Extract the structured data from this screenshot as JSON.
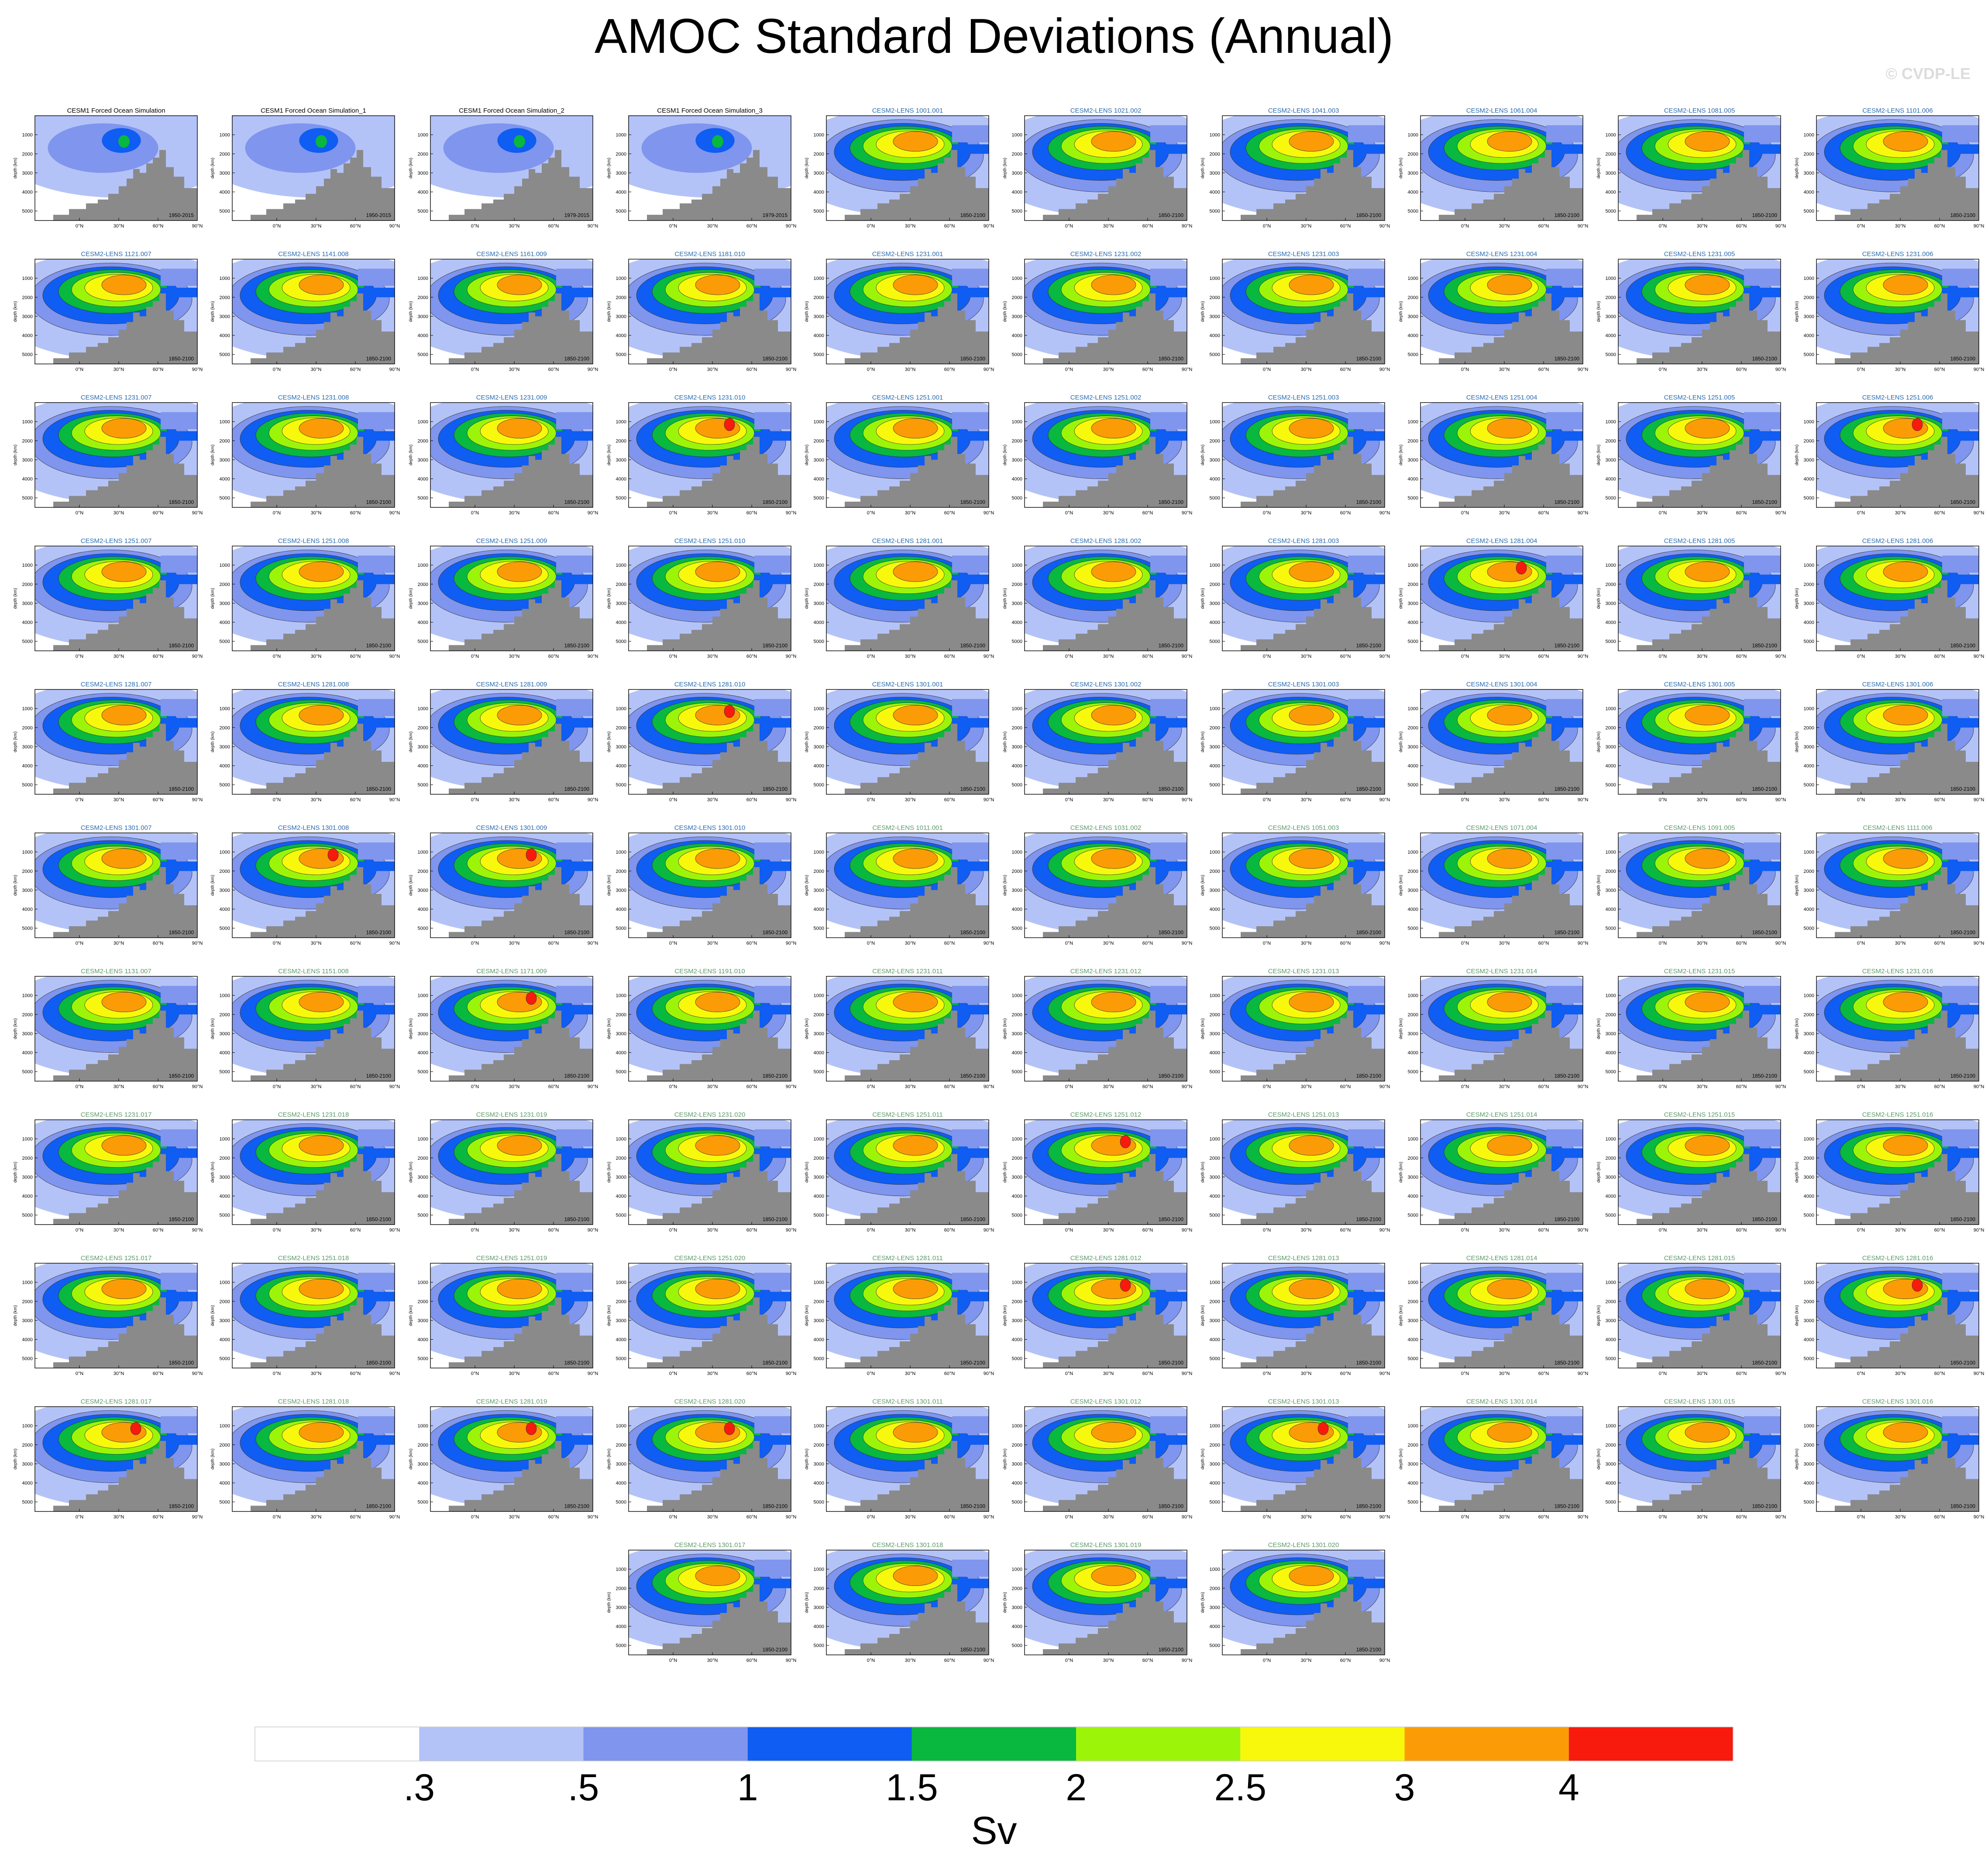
{
  "title": "AMOC Standard Deviations (Annual)",
  "watermark": "© CVDP-LE",
  "chart_data": {
    "type": "contour-panels",
    "title": "AMOC Standard Deviations (Annual)",
    "units": "Sv",
    "ylabel": "depth (km)",
    "x_ticks": [
      "0°N",
      "30°N",
      "60°N",
      "90°N"
    ],
    "y_ticks": [
      "1000",
      "2000",
      "3000",
      "4000",
      "5000"
    ],
    "ylim": [
      0,
      5500
    ],
    "xlim": [
      -34,
      90
    ],
    "contour_levels": [
      ".3",
      ".5",
      "1",
      "1.5",
      "2",
      "2.5",
      "3",
      "4"
    ],
    "colors": [
      "#ffffff",
      "#b4c3f7",
      "#7f95ee",
      "#0f5df2",
      "#08b83f",
      "#9cf508",
      "#f7f80b",
      "#fb9c06",
      "#f71a0d"
    ],
    "colorbar_label": "Sv",
    "panels": [
      {
        "title": "CESM1 Forced Ocean Simulation",
        "years": "1950-2015",
        "peak": 1.6,
        "title_color": "#000000"
      },
      {
        "title": "CESM1 Forced Ocean Simulation_1",
        "years": "1950-2015",
        "peak": 1.6,
        "title_color": "#000000"
      },
      {
        "title": "CESM1 Forced Ocean Simulation_2",
        "years": "1979-2015",
        "peak": 1.6,
        "title_color": "#000000"
      },
      {
        "title": "CESM1 Forced Ocean Simulation_3",
        "years": "1979-2015",
        "peak": 1.7,
        "title_color": "#000000"
      },
      {
        "title": "CESM2-LENS 1001.001",
        "years": "1850-2100",
        "peak": 3.4,
        "title_color": "#2a6bb0"
      },
      {
        "title": "CESM2-LENS 1021.002",
        "years": "1850-2100",
        "peak": 3.1,
        "title_color": "#2a6bb0"
      },
      {
        "title": "CESM2-LENS 1041.003",
        "years": "1850-2100",
        "peak": 3.1,
        "title_color": "#2a6bb0"
      },
      {
        "title": "CESM2-LENS 1061.004",
        "years": "1850-2100",
        "peak": 3.1,
        "title_color": "#2a6bb0"
      },
      {
        "title": "CESM2-LENS 1081.005",
        "years": "1850-2100",
        "peak": 3.3,
        "title_color": "#2a6bb0"
      },
      {
        "title": "CESM2-LENS 1101.006",
        "years": "1850-2100",
        "peak": 3.2,
        "title_color": "#2a6bb0"
      },
      {
        "title": "CESM2-LENS 1121.007",
        "years": "1850-2100",
        "peak": 3.3,
        "title_color": "#2a6bb0"
      },
      {
        "title": "CESM2-LENS 1141.008",
        "years": "1850-2100",
        "peak": 3.1,
        "title_color": "#2a6bb0"
      },
      {
        "title": "CESM2-LENS 1161.009",
        "years": "1850-2100",
        "peak": 3.4,
        "title_color": "#2a6bb0"
      },
      {
        "title": "CESM2-LENS 1181.010",
        "years": "1850-2100",
        "peak": 3.1,
        "title_color": "#2a6bb0"
      },
      {
        "title": "CESM2-LENS 1231.001",
        "years": "1850-2100",
        "peak": 3.1,
        "title_color": "#2a6bb0"
      },
      {
        "title": "CESM2-LENS 1231.002",
        "years": "1850-2100",
        "peak": 3.1,
        "title_color": "#2a6bb0"
      },
      {
        "title": "CESM2-LENS 1231.003",
        "years": "1850-2100",
        "peak": 3.1,
        "title_color": "#2a6bb0"
      },
      {
        "title": "CESM2-LENS 1231.004",
        "years": "1850-2100",
        "peak": 3.1,
        "title_color": "#2a6bb0"
      },
      {
        "title": "CESM2-LENS 1231.005",
        "years": "1850-2100",
        "peak": 3.1,
        "title_color": "#2a6bb0"
      },
      {
        "title": "CESM2-LENS 1231.006",
        "years": "1850-2100",
        "peak": 3.1,
        "title_color": "#2a6bb0"
      },
      {
        "title": "CESM2-LENS 1231.007",
        "years": "1850-2100",
        "peak": 3.1,
        "title_color": "#2a6bb0"
      },
      {
        "title": "CESM2-LENS 1231.008",
        "years": "1850-2100",
        "peak": 3.1,
        "title_color": "#2a6bb0"
      },
      {
        "title": "CESM2-LENS 1231.009",
        "years": "1850-2100",
        "peak": 3.1,
        "title_color": "#2a6bb0"
      },
      {
        "title": "CESM2-LENS 1231.010",
        "years": "1850-2100",
        "peak": 4.2,
        "title_color": "#2a6bb0"
      },
      {
        "title": "CESM2-LENS 1251.001",
        "years": "1850-2100",
        "peak": 3.1,
        "title_color": "#2a6bb0"
      },
      {
        "title": "CESM2-LENS 1251.002",
        "years": "1850-2100",
        "peak": 3.1,
        "title_color": "#2a6bb0"
      },
      {
        "title": "CESM2-LENS 1251.003",
        "years": "1850-2100",
        "peak": 3.1,
        "title_color": "#2a6bb0"
      },
      {
        "title": "CESM2-LENS 1251.004",
        "years": "1850-2100",
        "peak": 3.4,
        "title_color": "#2a6bb0"
      },
      {
        "title": "CESM2-LENS 1251.005",
        "years": "1850-2100",
        "peak": 3.1,
        "title_color": "#2a6bb0"
      },
      {
        "title": "CESM2-LENS 1251.006",
        "years": "1850-2100",
        "peak": 4.1,
        "title_color": "#2a6bb0"
      },
      {
        "title": "CESM2-LENS 1251.007",
        "years": "1850-2100",
        "peak": 3.1,
        "title_color": "#2a6bb0"
      },
      {
        "title": "CESM2-LENS 1251.008",
        "years": "1850-2100",
        "peak": 3.1,
        "title_color": "#2a6bb0"
      },
      {
        "title": "CESM2-LENS 1251.009",
        "years": "1850-2100",
        "peak": 3.1,
        "title_color": "#2a6bb0"
      },
      {
        "title": "CESM2-LENS 1251.010",
        "years": "1850-2100",
        "peak": 3.1,
        "title_color": "#2a6bb0"
      },
      {
        "title": "CESM2-LENS 1281.001",
        "years": "1850-2100",
        "peak": 3.1,
        "title_color": "#2a6bb0"
      },
      {
        "title": "CESM2-LENS 1281.002",
        "years": "1850-2100",
        "peak": 3.5,
        "title_color": "#2a6bb0"
      },
      {
        "title": "CESM2-LENS 1281.003",
        "years": "1850-2100",
        "peak": 3.1,
        "title_color": "#2a6bb0"
      },
      {
        "title": "CESM2-LENS 1281.004",
        "years": "1850-2100",
        "peak": 4.1,
        "title_color": "#2a6bb0"
      },
      {
        "title": "CESM2-LENS 1281.005",
        "years": "1850-2100",
        "peak": 3.1,
        "title_color": "#2a6bb0"
      },
      {
        "title": "CESM2-LENS 1281.006",
        "years": "1850-2100",
        "peak": 3.1,
        "title_color": "#2a6bb0"
      },
      {
        "title": "CESM2-LENS 1281.007",
        "years": "1850-2100",
        "peak": 3.1,
        "title_color": "#2a6bb0"
      },
      {
        "title": "CESM2-LENS 1281.008",
        "years": "1850-2100",
        "peak": 3.4,
        "title_color": "#2a6bb0"
      },
      {
        "title": "CESM2-LENS 1281.009",
        "years": "1850-2100",
        "peak": 3.1,
        "title_color": "#2a6bb0"
      },
      {
        "title": "CESM2-LENS 1281.010",
        "years": "1850-2100",
        "peak": 4.1,
        "title_color": "#2a6bb0"
      },
      {
        "title": "CESM2-LENS 1301.001",
        "years": "1850-2100",
        "peak": 3.1,
        "title_color": "#2a6bb0"
      },
      {
        "title": "CESM2-LENS 1301.002",
        "years": "1850-2100",
        "peak": 3.1,
        "title_color": "#2a6bb0"
      },
      {
        "title": "CESM2-LENS 1301.003",
        "years": "1850-2100",
        "peak": 3.1,
        "title_color": "#2a6bb0"
      },
      {
        "title": "CESM2-LENS 1301.004",
        "years": "1850-2100",
        "peak": 3.1,
        "title_color": "#2a6bb0"
      },
      {
        "title": "CESM2-LENS 1301.005",
        "years": "1850-2100",
        "peak": 3.1,
        "title_color": "#2a6bb0"
      },
      {
        "title": "CESM2-LENS 1301.006",
        "years": "1850-2100",
        "peak": 3.4,
        "title_color": "#2a6bb0"
      },
      {
        "title": "CESM2-LENS 1301.007",
        "years": "1850-2100",
        "peak": 3.1,
        "title_color": "#2a6bb0"
      },
      {
        "title": "CESM2-LENS 1301.008",
        "years": "1850-2100",
        "peak": 4.1,
        "title_color": "#2a6bb0"
      },
      {
        "title": "CESM2-LENS 1301.009",
        "years": "1850-2100",
        "peak": 4.1,
        "title_color": "#2a6bb0"
      },
      {
        "title": "CESM2-LENS 1301.010",
        "years": "1850-2100",
        "peak": 3.1,
        "title_color": "#2a6bb0"
      },
      {
        "title": "CESM2-LENS 1011.001",
        "years": "1850-2100",
        "peak": 3.1,
        "title_color": "#5c9a6a"
      },
      {
        "title": "CESM2-LENS 1031.002",
        "years": "1850-2100",
        "peak": 3.1,
        "title_color": "#5c9a6a"
      },
      {
        "title": "CESM2-LENS 1051.003",
        "years": "1850-2100",
        "peak": 3.1,
        "title_color": "#5c9a6a"
      },
      {
        "title": "CESM2-LENS 1071.004",
        "years": "1850-2100",
        "peak": 3.1,
        "title_color": "#5c9a6a"
      },
      {
        "title": "CESM2-LENS 1091.005",
        "years": "1850-2100",
        "peak": 3.3,
        "title_color": "#5c9a6a"
      },
      {
        "title": "CESM2-LENS 1111.006",
        "years": "1850-2100",
        "peak": 3.1,
        "title_color": "#5c9a6a"
      },
      {
        "title": "CESM2-LENS 1131.007",
        "years": "1850-2100",
        "peak": 3.3,
        "title_color": "#5c9a6a"
      },
      {
        "title": "CESM2-LENS 1151.008",
        "years": "1850-2100",
        "peak": 3.1,
        "title_color": "#5c9a6a"
      },
      {
        "title": "CESM2-LENS 1171.009",
        "years": "1850-2100",
        "peak": 4.1,
        "title_color": "#5c9a6a"
      },
      {
        "title": "CESM2-LENS 1191.010",
        "years": "1850-2100",
        "peak": 3.1,
        "title_color": "#5c9a6a"
      },
      {
        "title": "CESM2-LENS 1231.011",
        "years": "1850-2100",
        "peak": 3.1,
        "title_color": "#5c9a6a"
      },
      {
        "title": "CESM2-LENS 1231.012",
        "years": "1850-2100",
        "peak": 3.1,
        "title_color": "#5c9a6a"
      },
      {
        "title": "CESM2-LENS 1231.013",
        "years": "1850-2100",
        "peak": 3.1,
        "title_color": "#5c9a6a"
      },
      {
        "title": "CESM2-LENS 1231.014",
        "years": "1850-2100",
        "peak": 3.1,
        "title_color": "#5c9a6a"
      },
      {
        "title": "CESM2-LENS 1231.015",
        "years": "1850-2100",
        "peak": 3.1,
        "title_color": "#5c9a6a"
      },
      {
        "title": "CESM2-LENS 1231.016",
        "years": "1850-2100",
        "peak": 3.1,
        "title_color": "#5c9a6a"
      },
      {
        "title": "CESM2-LENS 1231.017",
        "years": "1850-2100",
        "peak": 3.3,
        "title_color": "#5c9a6a"
      },
      {
        "title": "CESM2-LENS 1231.018",
        "years": "1850-2100",
        "peak": 3.1,
        "title_color": "#5c9a6a"
      },
      {
        "title": "CESM2-LENS 1231.019",
        "years": "1850-2100",
        "peak": 3.1,
        "title_color": "#5c9a6a"
      },
      {
        "title": "CESM2-LENS 1231.020",
        "years": "1850-2100",
        "peak": 3.1,
        "title_color": "#5c9a6a"
      },
      {
        "title": "CESM2-LENS 1251.011",
        "years": "1850-2100",
        "peak": 3.1,
        "title_color": "#5c9a6a"
      },
      {
        "title": "CESM2-LENS 1251.012",
        "years": "1850-2100",
        "peak": 4.1,
        "title_color": "#5c9a6a"
      },
      {
        "title": "CESM2-LENS 1251.013",
        "years": "1850-2100",
        "peak": 3.1,
        "title_color": "#5c9a6a"
      },
      {
        "title": "CESM2-LENS 1251.014",
        "years": "1850-2100",
        "peak": 3.1,
        "title_color": "#5c9a6a"
      },
      {
        "title": "CESM2-LENS 1251.015",
        "years": "1850-2100",
        "peak": 3.1,
        "title_color": "#5c9a6a"
      },
      {
        "title": "CESM2-LENS 1251.016",
        "years": "1850-2100",
        "peak": 3.1,
        "title_color": "#5c9a6a"
      },
      {
        "title": "CESM2-LENS 1251.017",
        "years": "1850-2100",
        "peak": 3.1,
        "title_color": "#5c9a6a"
      },
      {
        "title": "CESM2-LENS 1251.018",
        "years": "1850-2100",
        "peak": 3.0,
        "title_color": "#5c9a6a"
      },
      {
        "title": "CESM2-LENS 1251.019",
        "years": "1850-2100",
        "peak": 3.1,
        "title_color": "#5c9a6a"
      },
      {
        "title": "CESM2-LENS 1251.020",
        "years": "1850-2100",
        "peak": 3.1,
        "title_color": "#5c9a6a"
      },
      {
        "title": "CESM2-LENS 1281.011",
        "years": "1850-2100",
        "peak": 3.3,
        "title_color": "#5c9a6a"
      },
      {
        "title": "CESM2-LENS 1281.012",
        "years": "1850-2100",
        "peak": 4.1,
        "title_color": "#5c9a6a"
      },
      {
        "title": "CESM2-LENS 1281.013",
        "years": "1850-2100",
        "peak": 3.3,
        "title_color": "#5c9a6a"
      },
      {
        "title": "CESM2-LENS 1281.014",
        "years": "1850-2100",
        "peak": 3.1,
        "title_color": "#5c9a6a"
      },
      {
        "title": "CESM2-LENS 1281.015",
        "years": "1850-2100",
        "peak": 3.3,
        "title_color": "#5c9a6a"
      },
      {
        "title": "CESM2-LENS 1281.016",
        "years": "1850-2100",
        "peak": 4.1,
        "title_color": "#5c9a6a"
      },
      {
        "title": "CESM2-LENS 1281.017",
        "years": "1850-2100",
        "peak": 4.1,
        "title_color": "#5c9a6a"
      },
      {
        "title": "CESM2-LENS 1281.018",
        "years": "1850-2100",
        "peak": 3.1,
        "title_color": "#5c9a6a"
      },
      {
        "title": "CESM2-LENS 1281.019",
        "years": "1850-2100",
        "peak": 4.1,
        "title_color": "#5c9a6a"
      },
      {
        "title": "CESM2-LENS 1281.020",
        "years": "1850-2100",
        "peak": 4.2,
        "title_color": "#5c9a6a"
      },
      {
        "title": "CESM2-LENS 1301.011",
        "years": "1850-2100",
        "peak": 3.1,
        "title_color": "#5c9a6a"
      },
      {
        "title": "CESM2-LENS 1301.012",
        "years": "1850-2100",
        "peak": 3.1,
        "title_color": "#5c9a6a"
      },
      {
        "title": "CESM2-LENS 1301.013",
        "years": "1850-2100",
        "peak": 4.1,
        "title_color": "#5c9a6a"
      },
      {
        "title": "CESM2-LENS 1301.014",
        "years": "1850-2100",
        "peak": 3.1,
        "title_color": "#5c9a6a"
      },
      {
        "title": "CESM2-LENS 1301.015",
        "years": "1850-2100",
        "peak": 3.1,
        "title_color": "#5c9a6a"
      },
      {
        "title": "CESM2-LENS 1301.016",
        "years": "1850-2100",
        "peak": 3.1,
        "title_color": "#5c9a6a"
      },
      {
        "title": "CESM2-LENS 1301.017",
        "years": "1850-2100",
        "peak": 3.1,
        "title_color": "#5c9a6a"
      },
      {
        "title": "CESM2-LENS 1301.018",
        "years": "1850-2100",
        "peak": 3.3,
        "title_color": "#5c9a6a"
      },
      {
        "title": "CESM2-LENS 1301.019",
        "years": "1850-2100",
        "peak": 3.1,
        "title_color": "#5c9a6a"
      },
      {
        "title": "CESM2-LENS 1301.020",
        "years": "1850-2100",
        "peak": 3.1,
        "title_color": "#5c9a6a"
      }
    ]
  }
}
